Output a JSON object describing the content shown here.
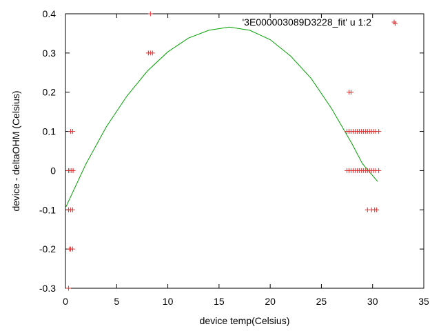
{
  "chart_data": {
    "type": "scatter",
    "title": "",
    "xlabel": "device temp(Celsius)",
    "ylabel": "device - deltaOHM (Celsius)",
    "xlim": [
      0,
      35
    ],
    "ylim": [
      -0.3,
      0.4
    ],
    "x_ticks": [
      0,
      5,
      10,
      15,
      20,
      25,
      30,
      35
    ],
    "y_ticks": [
      -0.3,
      -0.2,
      -0.1,
      0,
      0.1,
      0.2,
      0.3,
      0.4
    ],
    "x_tick_labels": [
      "0",
      "5",
      "10",
      "15",
      "20",
      "25",
      "30",
      "35"
    ],
    "y_tick_labels": [
      "-0.3",
      "-0.2",
      "-0.1",
      "0",
      "0.1",
      "0.2",
      "0.3",
      "0.4"
    ],
    "grid": false,
    "legend_position": "top-right",
    "series": [
      {
        "name": "'3E000003089D3228_fit' u 1:2",
        "type": "scatter",
        "marker": "plus",
        "color": "#e03030",
        "points": [
          [
            0.3,
            -0.3
          ],
          [
            0.4,
            -0.2
          ],
          [
            0.5,
            -0.2
          ],
          [
            0.7,
            -0.2
          ],
          [
            0.3,
            -0.1
          ],
          [
            0.5,
            -0.1
          ],
          [
            0.7,
            -0.1
          ],
          [
            0.3,
            0
          ],
          [
            0.45,
            0
          ],
          [
            0.6,
            0
          ],
          [
            0.75,
            0
          ],
          [
            0.5,
            0.1
          ],
          [
            0.7,
            0.1
          ],
          [
            8.1,
            0.3
          ],
          [
            8.3,
            0.3
          ],
          [
            8.5,
            0.3
          ],
          [
            8.3,
            0.4
          ],
          [
            27.7,
            0.2
          ],
          [
            27.9,
            0.2
          ],
          [
            27.5,
            0.1
          ],
          [
            27.7,
            0.1
          ],
          [
            27.9,
            0.1
          ],
          [
            28.1,
            0.1
          ],
          [
            28.3,
            0.1
          ],
          [
            28.5,
            0.1
          ],
          [
            28.7,
            0.1
          ],
          [
            28.9,
            0.1
          ],
          [
            29.1,
            0.1
          ],
          [
            29.3,
            0.1
          ],
          [
            29.5,
            0.1
          ],
          [
            29.7,
            0.1
          ],
          [
            29.9,
            0.1
          ],
          [
            30.1,
            0.1
          ],
          [
            30.3,
            0.1
          ],
          [
            30.6,
            0.1
          ],
          [
            27.5,
            0
          ],
          [
            27.7,
            0
          ],
          [
            27.9,
            0
          ],
          [
            28.1,
            0
          ],
          [
            28.3,
            0
          ],
          [
            28.5,
            0
          ],
          [
            28.7,
            0
          ],
          [
            28.9,
            0
          ],
          [
            29.1,
            0
          ],
          [
            29.3,
            0
          ],
          [
            29.5,
            0
          ],
          [
            29.7,
            0
          ],
          [
            29.9,
            0
          ],
          [
            30.1,
            0
          ],
          [
            30.3,
            0
          ],
          [
            30.6,
            0
          ],
          [
            29.5,
            -0.1
          ],
          [
            29.9,
            -0.1
          ],
          [
            30.2,
            -0.1
          ],
          [
            30.4,
            -0.1
          ],
          [
            32.2,
            0.375
          ]
        ]
      },
      {
        "type": "line",
        "color": "#00a000",
        "points": [
          [
            0,
            -0.095
          ],
          [
            2,
            0.017
          ],
          [
            4,
            0.112
          ],
          [
            6,
            0.19
          ],
          [
            8,
            0.254
          ],
          [
            10,
            0.303
          ],
          [
            12,
            0.338
          ],
          [
            14,
            0.358
          ],
          [
            16,
            0.366
          ],
          [
            18,
            0.358
          ],
          [
            20,
            0.334
          ],
          [
            22,
            0.292
          ],
          [
            24,
            0.235
          ],
          [
            26,
            0.158
          ],
          [
            28,
            0.068
          ],
          [
            29,
            0.018
          ],
          [
            30.5,
            -0.028
          ]
        ]
      }
    ]
  }
}
